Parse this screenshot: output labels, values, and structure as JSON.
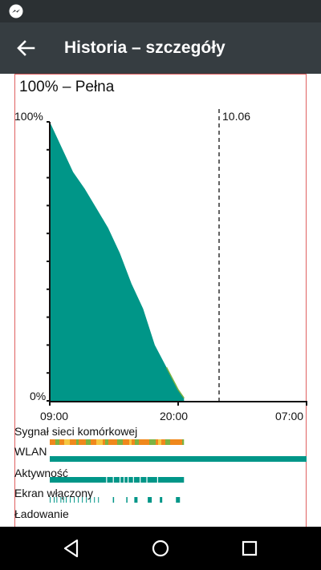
{
  "header": {
    "title": "Historia – szczegóły"
  },
  "battery": {
    "status_text": "100% – Pełna",
    "y_max_label": "100%",
    "y_min_label": "0%",
    "date_marker_label": "10.06"
  },
  "chart_data": {
    "type": "area",
    "ylabel": "",
    "xlabel": "",
    "ylim": [
      0,
      100
    ],
    "x_tick_labels": [
      "09:00",
      "20:00",
      "07:00"
    ],
    "x_ticks": [
      "09:00",
      "20:00",
      "07:00 (+1)"
    ],
    "date_marker": {
      "at": "00:00 (+1)",
      "label": "10.06"
    },
    "series": [
      {
        "values_by_time": [
          {
            "t": "09:00",
            "v": 100
          },
          {
            "t": "10:00",
            "v": 91
          },
          {
            "t": "11:00",
            "v": 82
          },
          {
            "t": "12:00",
            "v": 76
          },
          {
            "t": "13:00",
            "v": 69
          },
          {
            "t": "14:00",
            "v": 62
          },
          {
            "t": "15:00",
            "v": 53
          },
          {
            "t": "16:00",
            "v": 42
          },
          {
            "t": "17:00",
            "v": 33
          },
          {
            "t": "18:00",
            "v": 20
          },
          {
            "t": "19:00",
            "v": 12
          },
          {
            "t": "20:00",
            "v": 4
          },
          {
            "t": "20:30",
            "v": 1
          }
        ]
      }
    ]
  },
  "tracks": [
    {
      "key": "signal",
      "label": "Sygnał sieci komórkowej"
    },
    {
      "key": "wlan",
      "label": "WLAN"
    },
    {
      "key": "activity",
      "label": "Aktywność"
    },
    {
      "key": "screen",
      "label": "Ekran włączony"
    },
    {
      "key": "charging",
      "label": "Ładowanie"
    }
  ],
  "colors": {
    "battery_fill": "#009688",
    "signal_orange": "#f0881c",
    "signal_green": "#7cb342",
    "signal_yellow": "#f5c842",
    "wlan": "#009688",
    "activity": "#009688",
    "screen": "#009688",
    "frame": "#e06060"
  },
  "icons": {
    "status": "messenger-icon",
    "back": "arrow-back-icon",
    "nav": [
      "back-triangle-icon",
      "home-circle-icon",
      "recents-square-icon"
    ]
  }
}
